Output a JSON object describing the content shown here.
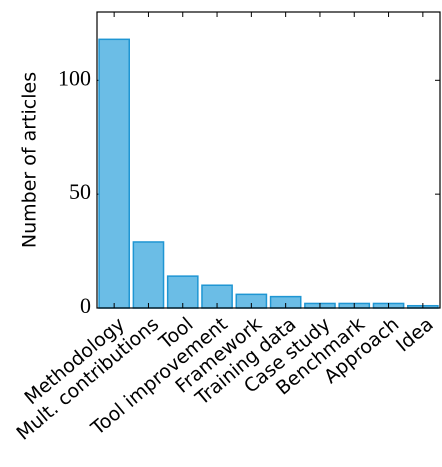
{
  "chart_data": {
    "type": "bar",
    "ylabel": "Number of articles",
    "categories": [
      "Methodology",
      "Mult. contributions",
      "Tool",
      "Tool improvement",
      "Framework",
      "Training data",
      "Case study",
      "Benchmark",
      "Approach",
      "Idea"
    ],
    "values": [
      118,
      29,
      14,
      10,
      6,
      5,
      2,
      2,
      2,
      1
    ],
    "color": "#6bbde6",
    "edgecolor": "#1f96d3",
    "ylim": [
      0,
      130
    ],
    "yticks": [
      0,
      50,
      100
    ],
    "grid": false
  }
}
